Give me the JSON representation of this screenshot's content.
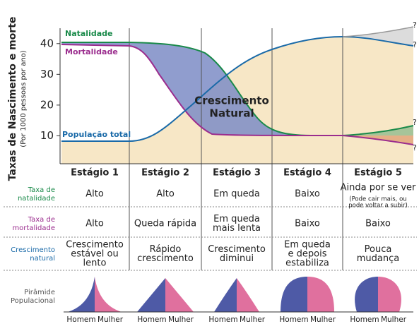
{
  "axis": {
    "title": "Taxas de Nascimento e morte",
    "subtitle": "(Por 1000 pessoas por ano)",
    "ylim": [
      0,
      45
    ],
    "yticks": [
      10,
      20,
      30,
      40
    ]
  },
  "curve_labels": {
    "natality": "Natalidade",
    "mortality": "Mortalidade",
    "population": "População total",
    "growth": [
      "Crescimento",
      "Natural"
    ],
    "unknown": "?"
  },
  "stages": [
    "Estágio 1",
    "Estágio 2",
    "Estágio 3",
    "Estágio 4",
    "Estágio 5"
  ],
  "rows": [
    {
      "label": [
        "Taxa de",
        "natalidade"
      ],
      "cells": [
        [
          "Alto"
        ],
        [
          "Alto"
        ],
        [
          "Em queda"
        ],
        [
          "Baixo"
        ],
        [
          "Ainda por se ver"
        ]
      ],
      "note": [
        "(Pode cair mais, ou",
        "pode voltar a subir)"
      ]
    },
    {
      "label": [
        "Taxa de",
        "mortalidade"
      ],
      "cells": [
        [
          "Alto"
        ],
        [
          "Queda rápida"
        ],
        [
          "Em queda",
          "mais lenta"
        ],
        [
          "Baixo"
        ],
        [
          "Baixo"
        ]
      ]
    },
    {
      "label": [
        "Crescimento",
        "natural"
      ],
      "cells": [
        [
          "Crescimento",
          "estável ou",
          "lento"
        ],
        [
          "Rápido",
          "crescimento"
        ],
        [
          "Crescimento",
          "diminui"
        ],
        [
          "Em queda",
          "e depois",
          "estabiliza"
        ],
        [
          "Pouca",
          "mudança"
        ]
      ]
    }
  ],
  "pyramid": {
    "label": [
      "Pirâmide",
      "Populacional"
    ],
    "male": "Homem",
    "female": "Mulher"
  }
}
